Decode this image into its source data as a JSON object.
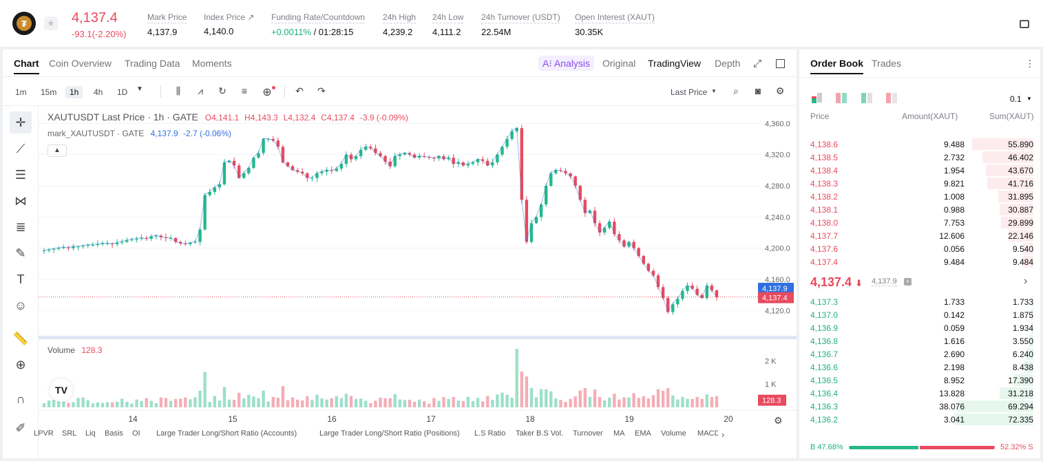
{
  "header": {
    "last_price": "4,137.4",
    "change": "-93.1(-2.20%)",
    "stats": [
      {
        "label": "Mark Price",
        "value": "4,137.9"
      },
      {
        "label": "Index Price ↗",
        "value": "4,140.0"
      },
      {
        "label": "Funding Rate/Countdown",
        "value_green": "+0.0011%",
        "value": " / 01:28:15"
      },
      {
        "label": "24h High",
        "value": "4,239.2"
      },
      {
        "label": "24h Low",
        "value": "4,111.2"
      },
      {
        "label": "24h Turnover (USDT)",
        "value": "22.54M"
      },
      {
        "label": "Open Interest (XAUT)",
        "value": "30.35K"
      }
    ]
  },
  "chart_tabs": [
    "Chart",
    "Coin Overview",
    "Trading Data",
    "Moments"
  ],
  "view_tabs": {
    "ai": "A⁝ Analysis",
    "original": "Original",
    "tradingview": "TradingView",
    "depth": "Depth"
  },
  "timeframes": [
    "1m",
    "15m",
    "1h",
    "4h",
    "1D"
  ],
  "price_type": "Last Price",
  "legend": {
    "title": "XAUTUSDT Last Price · 1h · GATE",
    "o": "O4,141.1",
    "h": "H4,143.3",
    "l": "L4,132.4",
    "c": "C4,137.4",
    "chg": "-3.9 (-0.09%)",
    "mark": "mark_XAUTUSDT · GATE",
    "mark_val": "4,137.9",
    "mark_chg": "-2.7 (-0.06%)"
  },
  "volume_label": "Volume",
  "volume_val": "128.3",
  "price_axis": [
    "4,360.0",
    "4,320.0",
    "4,280.0",
    "4,240.0",
    "4,200.0",
    "4,160.0",
    "4,120.0"
  ],
  "vol_axis": [
    "2 K",
    "1 K"
  ],
  "mark_tag": "4,137.9",
  "last_tag": "4,137.4",
  "vol_tag": "128.3",
  "x_labels": [
    "14",
    "15",
    "16",
    "17",
    "18",
    "19",
    "20"
  ],
  "indicators": [
    "LPVR",
    "SRL",
    "Liq",
    "Basis",
    "OI",
    "Large Trader Long/Short Ratio (Accounts)",
    "Large Trader Long/Short Ratio (Positions)",
    "L.S Ratio",
    "Taker B.S Vol.",
    "Turnover",
    "MA",
    "EMA",
    "Volume",
    "MACD"
  ],
  "colors": {
    "up": "#26b88a",
    "down": "#e84a5e",
    "blue": "#2f6fe0"
  },
  "chart_data": {
    "type": "candlestick",
    "symbol": "XAUTUSDT",
    "interval": "1h",
    "ylim": [
      4100,
      4370
    ],
    "x_day_labels": [
      "14",
      "15",
      "16",
      "17",
      "18",
      "19",
      "20"
    ],
    "close_path": [
      4197,
      4198,
      4199,
      4200,
      4201,
      4200,
      4202,
      4202,
      4203,
      4204,
      4204,
      4205,
      4206,
      4206,
      4205,
      4207,
      4208,
      4210,
      4211,
      4212,
      4213,
      4212,
      4215,
      4216,
      4214,
      4213,
      4213,
      4208,
      4206,
      4205,
      4207,
      4208,
      4224,
      4268,
      4272,
      4278,
      4282,
      4310,
      4312,
      4306,
      4290,
      4296,
      4303,
      4316,
      4322,
      4340,
      4340,
      4338,
      4330,
      4310,
      4305,
      4300,
      4298,
      4296,
      4290,
      4290,
      4296,
      4298,
      4300,
      4299,
      4302,
      4308,
      4320,
      4314,
      4318,
      4326,
      4330,
      4328,
      4322,
      4318,
      4311,
      4305,
      4318,
      4320,
      4322,
      4320,
      4316,
      4318,
      4317,
      4316,
      4315,
      4318,
      4314,
      4316,
      4308,
      4310,
      4306,
      4308,
      4310,
      4314,
      4312,
      4306,
      4310,
      4320,
      4330,
      4340,
      4350,
      4354,
      4262,
      4208,
      4232,
      4240,
      4256,
      4280,
      4296,
      4300,
      4299,
      4296,
      4292,
      4280,
      4262,
      4245,
      4248,
      4232,
      4220,
      4226,
      4234,
      4218,
      4210,
      4202,
      4208,
      4200,
      4190,
      4180,
      4171,
      4165,
      4150,
      4136,
      4118,
      4128,
      4135,
      4145,
      4152,
      4148,
      4140,
      4136,
      4152,
      4146,
      4137
    ],
    "series": [
      {
        "name": "XAUTUSDT Last Price",
        "open": 4141.1,
        "high": 4143.3,
        "low": 4132.4,
        "close": 4137.4,
        "change": -3.9,
        "change_pct": -0.09
      },
      {
        "name": "mark_XAUTUSDT",
        "value": 4137.9,
        "change": -2.7,
        "change_pct": -0.06
      }
    ],
    "volume": {
      "last": 128.3,
      "ylim": [
        0,
        2600
      ]
    }
  },
  "orderbook": {
    "tabs": [
      "Order Book",
      "Trades"
    ],
    "precision": "0.1",
    "headers": [
      "Price",
      "Amount(XAUT)",
      "Sum(XAUT)"
    ],
    "asks": [
      {
        "p": "4,138.6",
        "a": "9.488",
        "s": "55.890",
        "w": 0.77
      },
      {
        "p": "4,138.5",
        "a": "2.732",
        "s": "46.402",
        "w": 0.64
      },
      {
        "p": "4,138.4",
        "a": "1.954",
        "s": "43.670",
        "w": 0.6
      },
      {
        "p": "4,138.3",
        "a": "9.821",
        "s": "41.716",
        "w": 0.58
      },
      {
        "p": "4,138.2",
        "a": "1.008",
        "s": "31.895",
        "w": 0.44
      },
      {
        "p": "4,138.1",
        "a": "0.988",
        "s": "30.887",
        "w": 0.43
      },
      {
        "p": "4,138.0",
        "a": "7.753",
        "s": "29.899",
        "w": 0.41
      },
      {
        "p": "4,137.7",
        "a": "12.606",
        "s": "22.146",
        "w": 0.31
      },
      {
        "p": "4,137.6",
        "a": "0.056",
        "s": "9.540",
        "w": 0.13
      },
      {
        "p": "4,137.4",
        "a": "9.484",
        "s": "9.484",
        "w": 0.13
      }
    ],
    "mid_price": "4,137.4",
    "mid_mark": "4,137.9",
    "bids": [
      {
        "p": "4,137.3",
        "a": "1.733",
        "s": "1.733",
        "w": 0.02
      },
      {
        "p": "4,137.0",
        "a": "0.142",
        "s": "1.875",
        "w": 0.03
      },
      {
        "p": "4,136.9",
        "a": "0.059",
        "s": "1.934",
        "w": 0.03
      },
      {
        "p": "4,136.8",
        "a": "1.616",
        "s": "3.550",
        "w": 0.05
      },
      {
        "p": "4,136.7",
        "a": "2.690",
        "s": "6.240",
        "w": 0.09
      },
      {
        "p": "4,136.6",
        "a": "2.198",
        "s": "8.438",
        "w": 0.12
      },
      {
        "p": "4,136.5",
        "a": "8.952",
        "s": "17.390",
        "w": 0.24
      },
      {
        "p": "4,136.4",
        "a": "13.828",
        "s": "31.218",
        "w": 0.43
      },
      {
        "p": "4,136.3",
        "a": "38.076",
        "s": "69.294",
        "w": 0.96
      },
      {
        "p": "4,136.2",
        "a": "3.041",
        "s": "72.335",
        "w": 1.0
      }
    ],
    "buy_pct": "B 47.68%",
    "sell_pct": "52.32% S",
    "buy_ratio": 0.4768
  }
}
